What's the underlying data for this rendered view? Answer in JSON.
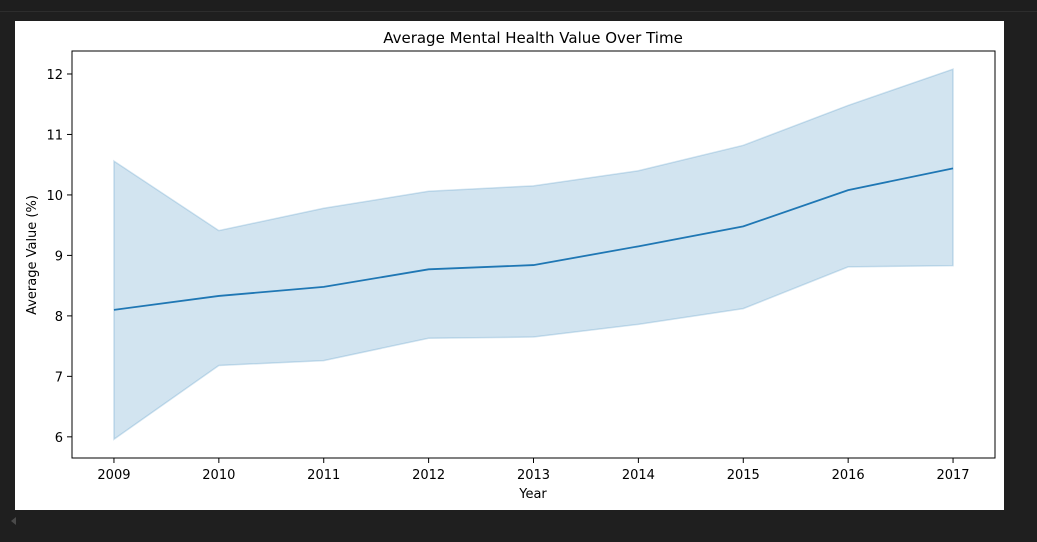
{
  "chart_data": {
    "type": "line",
    "title": "Average Mental Health Value Over Time",
    "xlabel": "Year",
    "ylabel": "Average Value (%)",
    "x": [
      2009,
      2010,
      2011,
      2012,
      2013,
      2014,
      2015,
      2016,
      2017
    ],
    "xlim": [
      2008.6,
      2017.4
    ],
    "ylim": [
      5.65,
      12.38
    ],
    "yticks": [
      6,
      7,
      8,
      9,
      10,
      11,
      12
    ],
    "grid": false,
    "series": [
      {
        "values": [
          8.1,
          8.33,
          8.48,
          8.77,
          8.84,
          9.15,
          9.48,
          10.08,
          10.44
        ],
        "ci_upper": [
          10.56,
          9.41,
          9.78,
          10.06,
          10.15,
          10.4,
          10.82,
          11.48,
          12.08
        ],
        "ci_lower": [
          5.96,
          7.18,
          7.26,
          7.63,
          7.65,
          7.86,
          8.12,
          8.81,
          8.83
        ],
        "color": "#1f77b4",
        "band_color": "#1f77b4"
      }
    ]
  }
}
